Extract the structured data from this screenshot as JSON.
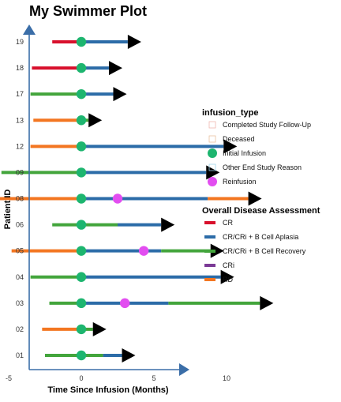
{
  "chart_data": {
    "type": "swimmer",
    "title": "My Swimmer Plot",
    "xlabel": "Time Since Infusion (Months)",
    "ylabel": "Patient ID",
    "xlim": [
      -7.5,
      14.5
    ],
    "xticks": [
      -5,
      0,
      5,
      10
    ],
    "axis_color": "#3b6ea8",
    "categories": [
      "01",
      "02",
      "03",
      "04",
      "05",
      "06",
      "08",
      "09",
      "12",
      "13",
      "17",
      "18",
      "19"
    ],
    "segments": [
      {
        "patient": "01",
        "start": -2.5,
        "end": 0,
        "status": "CR/CRi + B Cell Recovery"
      },
      {
        "patient": "01",
        "start": 0,
        "end": 1.5,
        "status": "CR/CRi + B Cell Recovery"
      },
      {
        "patient": "01",
        "start": 1.5,
        "end": 2.8,
        "status": "CR/CRi + B Cell Aplasia"
      },
      {
        "patient": "02",
        "start": -2.7,
        "end": 0,
        "status": "RD"
      },
      {
        "patient": "02",
        "start": 0,
        "end": 0.8,
        "status": "CR/CRi + B Cell Recovery"
      },
      {
        "patient": "03",
        "start": -2.2,
        "end": 0,
        "status": "CR/CRi + B Cell Recovery"
      },
      {
        "patient": "03",
        "start": 0,
        "end": 6.0,
        "status": "CR/CRi + B Cell Aplasia"
      },
      {
        "patient": "03",
        "start": 6.0,
        "end": 12.3,
        "status": "CR/CRi + B Cell Recovery"
      },
      {
        "patient": "04",
        "start": -3.5,
        "end": 0,
        "status": "CR/CRi + B Cell Recovery"
      },
      {
        "patient": "04",
        "start": 0,
        "end": 9.6,
        "status": "CR/CRi + B Cell Aplasia"
      },
      {
        "patient": "05",
        "start": -4.8,
        "end": 0,
        "status": "RD"
      },
      {
        "patient": "05",
        "start": 0,
        "end": 5.5,
        "status": "CR/CRi + B Cell Aplasia"
      },
      {
        "patient": "05",
        "start": 5.5,
        "end": 8.9,
        "status": "CR/CRi + B Cell Recovery"
      },
      {
        "patient": "06",
        "start": -2.0,
        "end": 2.5,
        "status": "CR/CRi + B Cell Recovery"
      },
      {
        "patient": "06",
        "start": 2.5,
        "end": 5.5,
        "status": "CR/CRi + B Cell Aplasia"
      },
      {
        "patient": "08",
        "start": -6.2,
        "end": 0,
        "status": "RD"
      },
      {
        "patient": "08",
        "start": 0,
        "end": 8.7,
        "status": "CR/CRi + B Cell Aplasia"
      },
      {
        "patient": "08",
        "start": 8.7,
        "end": 11.5,
        "status": "RD"
      },
      {
        "patient": "09",
        "start": -5.5,
        "end": 0,
        "status": "CR/CRi + B Cell Recovery"
      },
      {
        "patient": "09",
        "start": 0,
        "end": 8.6,
        "status": "CR/CRi + B Cell Aplasia"
      },
      {
        "patient": "12",
        "start": -3.5,
        "end": 0,
        "status": "RD"
      },
      {
        "patient": "12",
        "start": 0,
        "end": 9.8,
        "status": "CR/CRi + B Cell Aplasia"
      },
      {
        "patient": "13",
        "start": -3.3,
        "end": 0,
        "status": "RD"
      },
      {
        "patient": "13",
        "start": 0,
        "end": 0.5,
        "status": "CR/CRi + B Cell Recovery"
      },
      {
        "patient": "17",
        "start": -3.5,
        "end": 0,
        "status": "CR/CRi + B Cell Recovery"
      },
      {
        "patient": "17",
        "start": 0,
        "end": 2.2,
        "status": "CR/CRi + B Cell Aplasia"
      },
      {
        "patient": "18",
        "start": -3.4,
        "end": 0,
        "status": "CR"
      },
      {
        "patient": "18",
        "start": 0,
        "end": 1.9,
        "status": "CR/CRi + B Cell Aplasia"
      },
      {
        "patient": "19",
        "start": -2.0,
        "end": 0,
        "status": "CR"
      },
      {
        "patient": "19",
        "start": 0,
        "end": 3.2,
        "status": "CR/CRi + B Cell Aplasia"
      }
    ],
    "events": [
      {
        "patient": "01",
        "time": 0,
        "type": "Initial Infusion"
      },
      {
        "patient": "02",
        "time": 0,
        "type": "Initial Infusion"
      },
      {
        "patient": "03",
        "time": 0,
        "type": "Initial Infusion"
      },
      {
        "patient": "03",
        "time": 3.0,
        "type": "Reinfusion"
      },
      {
        "patient": "04",
        "time": 0,
        "type": "Initial Infusion"
      },
      {
        "patient": "05",
        "time": 0,
        "type": "Initial Infusion"
      },
      {
        "patient": "05",
        "time": 4.3,
        "type": "Reinfusion"
      },
      {
        "patient": "06",
        "time": 0,
        "type": "Initial Infusion"
      },
      {
        "patient": "08",
        "time": 0,
        "type": "Initial Infusion"
      },
      {
        "patient": "08",
        "time": 2.5,
        "type": "Reinfusion"
      },
      {
        "patient": "09",
        "time": 0,
        "type": "Initial Infusion"
      },
      {
        "patient": "12",
        "time": 0,
        "type": "Initial Infusion"
      },
      {
        "patient": "13",
        "time": 0,
        "type": "Initial Infusion"
      },
      {
        "patient": "17",
        "time": 0,
        "type": "Initial Infusion"
      },
      {
        "patient": "18",
        "time": 0,
        "type": "Initial Infusion"
      },
      {
        "patient": "19",
        "time": 0,
        "type": "Initial Infusion"
      }
    ],
    "arrows": [
      {
        "patient": "01",
        "time": 2.8
      },
      {
        "patient": "02",
        "time": 0.8
      },
      {
        "patient": "03",
        "time": 12.3
      },
      {
        "patient": "04",
        "time": 9.6
      },
      {
        "patient": "05",
        "time": 8.9
      },
      {
        "patient": "06",
        "time": 5.5
      },
      {
        "patient": "08",
        "time": 11.5
      },
      {
        "patient": "09",
        "time": 8.6
      },
      {
        "patient": "12",
        "time": 9.8
      },
      {
        "patient": "13",
        "time": 0.5
      },
      {
        "patient": "17",
        "time": 2.2
      },
      {
        "patient": "18",
        "time": 1.9
      },
      {
        "patient": "19",
        "time": 3.2
      }
    ],
    "legend_placement": "right",
    "legends": [
      {
        "title": "infusion_type",
        "entries": [
          {
            "label": "Completed Study Follow-Up",
            "shape": "open-square",
            "color": "#f0b8b0"
          },
          {
            "label": "Deceased",
            "shape": "open-square",
            "color": "#e8c0a0"
          },
          {
            "label": "Initial Infusion",
            "shape": "circle",
            "color": "#1db56f"
          },
          {
            "label": "Other End Study Reason",
            "shape": "open-square",
            "color": "#9fd4ec"
          },
          {
            "label": "Reinfusion",
            "shape": "circle",
            "color": "#e24df0"
          }
        ]
      },
      {
        "title": "Overall Disease Assessment",
        "entries": [
          {
            "label": "CR",
            "shape": "line",
            "color": "#d8102c"
          },
          {
            "label": "CR/CRi + B Cell Aplasia",
            "shape": "line",
            "color": "#2c6ca8"
          },
          {
            "label": "CR/CRi + B Cell Recovery",
            "shape": "line",
            "color": "#43a53c"
          },
          {
            "label": "CRi",
            "shape": "line",
            "color": "#7b3a96"
          },
          {
            "label": "RD",
            "shape": "line",
            "color": "#f37621"
          }
        ]
      }
    ]
  }
}
